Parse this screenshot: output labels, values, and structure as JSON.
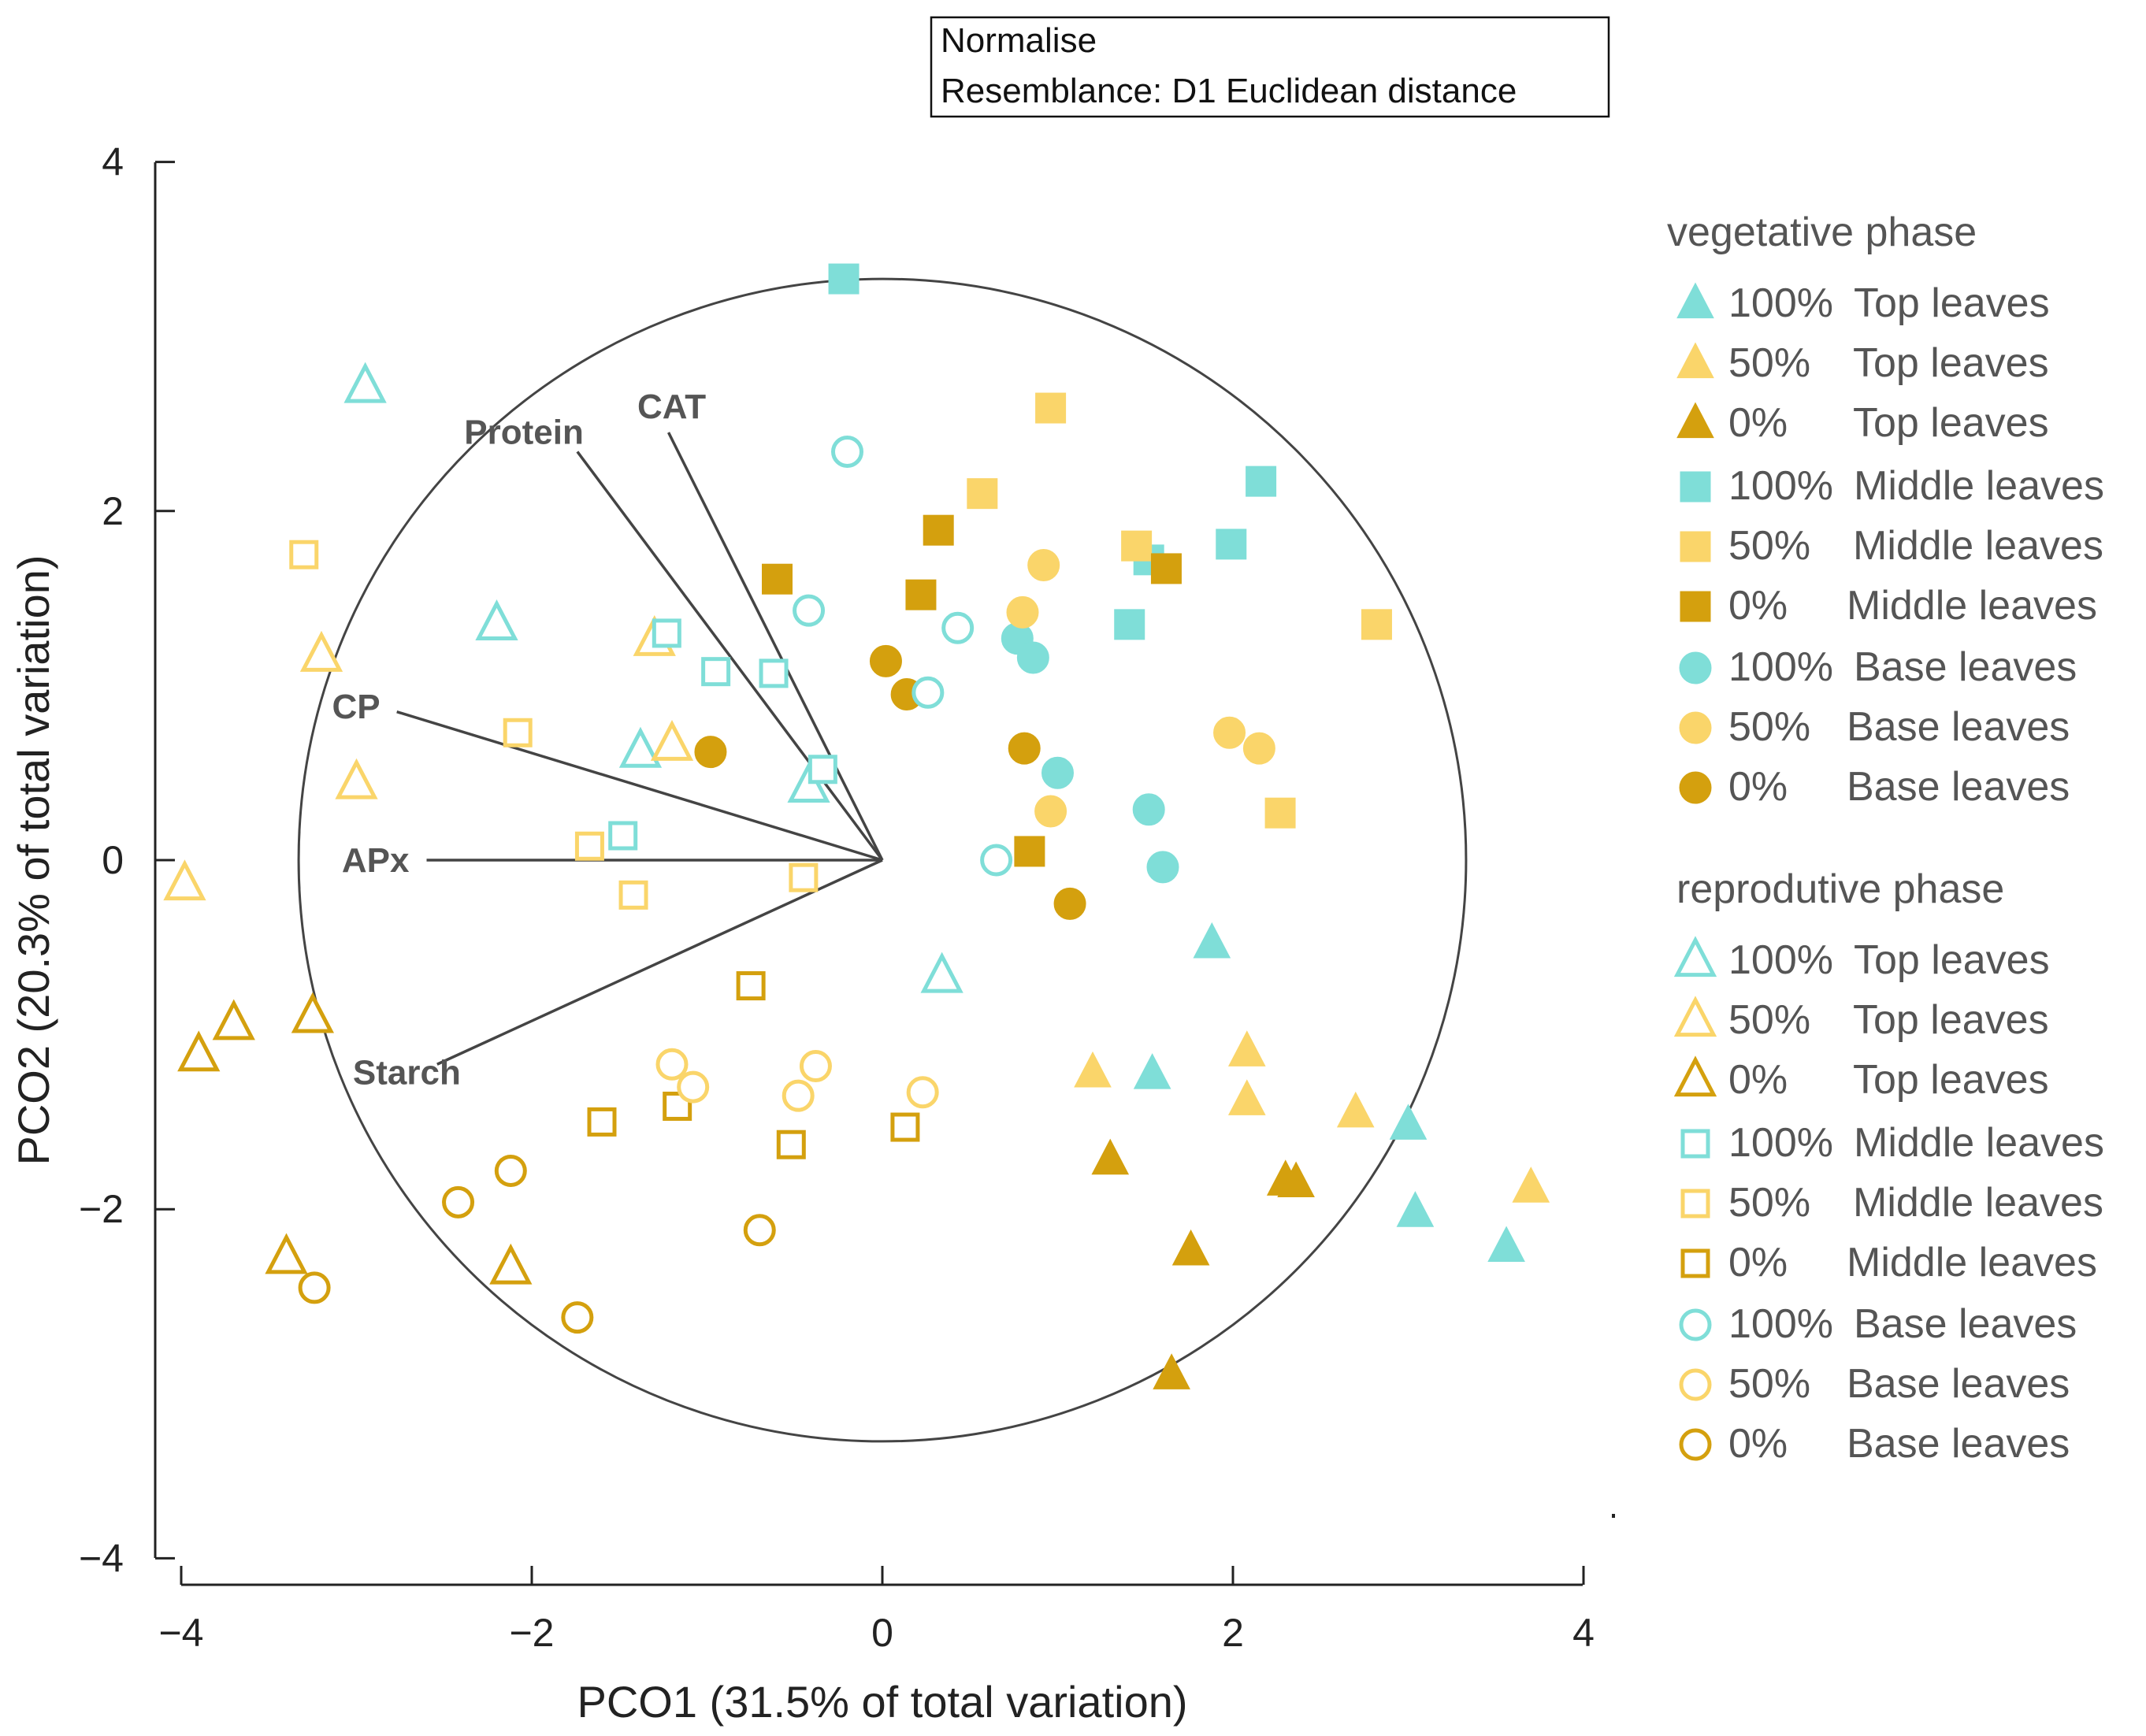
{
  "chart_data": {
    "type": "scatter",
    "title": "",
    "xlabel": "PCO1 (31.5% of total variation)",
    "ylabel": "PCO2 (20.3% of total variation)",
    "xlim": [
      -4,
      4
    ],
    "ylim": [
      -4,
      4
    ],
    "xticks": [
      -4,
      -2,
      0,
      2,
      4
    ],
    "yticks": [
      4,
      2,
      0,
      -2,
      -4
    ],
    "xtick_labels": [
      "−4",
      "−2",
      "0",
      "2",
      "4"
    ],
    "ytick_labels": [
      "4",
      "2",
      "0",
      "−2",
      "−4"
    ],
    "grid": false,
    "annotation_box": [
      "Normalise",
      "Resemblance: D1 Euclidean distance"
    ],
    "circle_radius": 3.33,
    "vectors": [
      {
        "label": "Protein",
        "x": -1.74,
        "y": 2.34
      },
      {
        "label": "CAT",
        "x": -1.22,
        "y": 2.45
      },
      {
        "label": "CP",
        "x": -2.77,
        "y": 0.85
      },
      {
        "label": "APx",
        "x": -2.6,
        "y": 0.0
      },
      {
        "label": "Starch",
        "x": -2.54,
        "y": -1.17
      }
    ],
    "colors": {
      "100%": "#7fded8",
      "50%": "#fad56a",
      "0%": "#d4a00e"
    },
    "legend_groups": [
      {
        "title": "vegetative phase",
        "filled": true
      },
      {
        "title": "reprodutive phase",
        "filled": false
      }
    ],
    "series": [
      {
        "phase": "vegetative",
        "level": "100%",
        "spacer": "",
        "position": "Top leaves",
        "shape": "triangle",
        "filled": true,
        "points": [
          [
            1.88,
            -0.48
          ],
          [
            1.54,
            -1.23
          ],
          [
            3.0,
            -1.52
          ],
          [
            3.04,
            -2.02
          ],
          [
            3.56,
            -2.22
          ]
        ]
      },
      {
        "phase": "vegetative",
        "level": "50%",
        "spacer": "",
        "position": "Top leaves",
        "shape": "triangle",
        "filled": true,
        "points": [
          [
            1.2,
            -1.22
          ],
          [
            2.08,
            -1.1
          ],
          [
            2.08,
            -1.38
          ],
          [
            2.7,
            -1.45
          ],
          [
            3.7,
            -1.88
          ]
        ]
      },
      {
        "phase": "vegetative",
        "level": "0%",
        "spacer": "",
        "position": "Top leaves",
        "shape": "triangle",
        "filled": true,
        "points": [
          [
            1.3,
            -1.72
          ],
          [
            2.3,
            -1.84
          ],
          [
            2.36,
            -1.85
          ],
          [
            1.76,
            -2.24
          ],
          [
            1.65,
            -2.95
          ]
        ]
      },
      {
        "phase": "vegetative",
        "level": "100%",
        "spacer": "",
        "position": "Middle leaves",
        "shape": "square",
        "filled": true,
        "points": [
          [
            -0.22,
            3.33
          ],
          [
            2.16,
            2.17
          ],
          [
            1.99,
            1.81
          ],
          [
            1.52,
            1.72
          ],
          [
            1.41,
            1.35
          ]
        ]
      },
      {
        "phase": "vegetative",
        "level": "50%",
        "spacer": "",
        "position": "Middle leaves",
        "shape": "square",
        "filled": true,
        "points": [
          [
            0.96,
            2.59
          ],
          [
            0.57,
            2.1
          ],
          [
            1.45,
            1.8
          ],
          [
            2.82,
            1.35
          ],
          [
            2.27,
            0.27
          ]
        ]
      },
      {
        "phase": "vegetative",
        "level": "0%",
        "spacer": " ",
        "position": "Middle leaves",
        "shape": "square",
        "filled": true,
        "points": [
          [
            0.32,
            1.89
          ],
          [
            -0.6,
            1.61
          ],
          [
            0.22,
            1.52
          ],
          [
            1.62,
            1.67
          ],
          [
            0.84,
            0.05
          ]
        ]
      },
      {
        "phase": "vegetative",
        "level": "100%",
        "spacer": "",
        "position": "Base leaves",
        "shape": "circle",
        "filled": true,
        "points": [
          [
            0.77,
            1.27
          ],
          [
            0.86,
            1.16
          ],
          [
            1.0,
            0.5
          ],
          [
            1.52,
            0.29
          ],
          [
            1.6,
            -0.04
          ]
        ]
      },
      {
        "phase": "vegetative",
        "level": "50%",
        "spacer": " ",
        "position": "Base leaves",
        "shape": "circle",
        "filled": true,
        "points": [
          [
            0.92,
            1.69
          ],
          [
            0.8,
            1.42
          ],
          [
            1.98,
            0.73
          ],
          [
            2.15,
            0.64
          ],
          [
            0.96,
            0.28
          ]
        ]
      },
      {
        "phase": "vegetative",
        "level": "0%",
        "spacer": " ",
        "position": "Base leaves",
        "shape": "circle",
        "filled": true,
        "points": [
          [
            0.02,
            1.14
          ],
          [
            0.14,
            0.95
          ],
          [
            -0.98,
            0.62
          ],
          [
            0.81,
            0.64
          ],
          [
            1.07,
            -0.25
          ]
        ]
      },
      {
        "phase": "reproductive",
        "level": "100%",
        "spacer": "",
        "position": "Top leaves",
        "shape": "triangle",
        "filled": false,
        "points": [
          [
            -2.95,
            2.71
          ],
          [
            -2.2,
            1.35
          ],
          [
            -1.38,
            0.62
          ],
          [
            -0.42,
            0.42
          ],
          [
            0.34,
            -0.67
          ]
        ]
      },
      {
        "phase": "reproductive",
        "level": "50%",
        "spacer": "",
        "position": "Top leaves",
        "shape": "triangle",
        "filled": false,
        "points": [
          [
            -3.2,
            1.17
          ],
          [
            -1.3,
            1.26
          ],
          [
            -1.2,
            0.66
          ],
          [
            -3.0,
            0.44
          ],
          [
            -3.98,
            -0.14
          ]
        ]
      },
      {
        "phase": "reproductive",
        "level": "0%",
        "spacer": "",
        "position": "Top leaves",
        "shape": "triangle",
        "filled": false,
        "points": [
          [
            -3.25,
            -0.9
          ],
          [
            -3.7,
            -0.94
          ],
          [
            -3.9,
            -1.12
          ],
          [
            -3.4,
            -2.28
          ],
          [
            -2.12,
            -2.34
          ]
        ]
      },
      {
        "phase": "reproductive",
        "level": "100%",
        "spacer": "",
        "position": "Middle leaves",
        "shape": "square",
        "filled": false,
        "points": [
          [
            -1.23,
            1.3
          ],
          [
            -0.95,
            1.08
          ],
          [
            -0.62,
            1.07
          ],
          [
            -0.34,
            0.52
          ],
          [
            -1.48,
            0.14
          ]
        ]
      },
      {
        "phase": "reproductive",
        "level": "50%",
        "spacer": "",
        "position": "Middle leaves",
        "shape": "square",
        "filled": false,
        "points": [
          [
            -3.3,
            1.75
          ],
          [
            -2.08,
            0.73
          ],
          [
            -1.67,
            0.08
          ],
          [
            -1.42,
            -0.2
          ],
          [
            -0.45,
            -0.1
          ]
        ]
      },
      {
        "phase": "reproductive",
        "level": "0%",
        "spacer": " ",
        "position": "Middle leaves",
        "shape": "square",
        "filled": false,
        "points": [
          [
            -0.75,
            -0.72
          ],
          [
            -1.6,
            -1.5
          ],
          [
            -1.17,
            -1.41
          ],
          [
            -0.52,
            -1.63
          ],
          [
            0.13,
            -1.53
          ]
        ]
      },
      {
        "phase": "reproductive",
        "level": "100%",
        "spacer": "",
        "position": "Base leaves",
        "shape": "circle",
        "filled": false,
        "points": [
          [
            -0.2,
            2.34
          ],
          [
            -0.42,
            1.43
          ],
          [
            0.43,
            1.33
          ],
          [
            0.26,
            0.96
          ],
          [
            0.65,
            0.0
          ]
        ]
      },
      {
        "phase": "reproductive",
        "level": "50%",
        "spacer": " ",
        "position": "Base leaves",
        "shape": "circle",
        "filled": false,
        "points": [
          [
            -1.2,
            -1.17
          ],
          [
            -1.08,
            -1.3
          ],
          [
            -0.38,
            -1.18
          ],
          [
            -0.48,
            -1.35
          ],
          [
            0.23,
            -1.33
          ]
        ]
      },
      {
        "phase": "reproductive",
        "level": "0%",
        "spacer": " ",
        "position": "Base leaves",
        "shape": "circle",
        "filled": false,
        "points": [
          [
            -2.42,
            -1.96
          ],
          [
            -2.12,
            -1.78
          ],
          [
            -3.24,
            -2.45
          ],
          [
            -1.74,
            -2.62
          ],
          [
            -0.7,
            -2.12
          ]
        ]
      }
    ]
  }
}
